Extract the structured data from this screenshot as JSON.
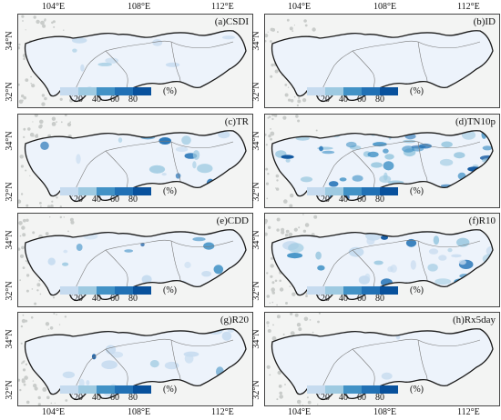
{
  "axes": {
    "lon_labels": [
      "104°E",
      "108°E",
      "112°E"
    ],
    "lat_labels": [
      "34°N",
      "32°N"
    ]
  },
  "colors": {
    "background": "#f3f4f3",
    "region_fill": "#edf3fb",
    "boundary": "#1a1a1a",
    "province_line": "#777777",
    "shading": [
      "#c6dbef",
      "#9ecae1",
      "#4292c6",
      "#2171b5",
      "#08519c"
    ]
  },
  "legend": {
    "ticks": [
      "20",
      "40",
      "60",
      "80"
    ],
    "unit": "(%)"
  },
  "panels": [
    {
      "title": "(a)CSDI",
      "coverage_level": 0.15
    },
    {
      "title": "(b)ID",
      "coverage_level": 0.0
    },
    {
      "title": "(c)TR",
      "coverage_level": 0.3
    },
    {
      "title": "(d)TN10p",
      "coverage_level": 0.85
    },
    {
      "title": "(e)CDD",
      "coverage_level": 0.25
    },
    {
      "title": "(f)R10",
      "coverage_level": 0.55
    },
    {
      "title": "(g)R20",
      "coverage_level": 0.3
    },
    {
      "title": "(h)Rx5day",
      "coverage_level": 0.05
    }
  ]
}
